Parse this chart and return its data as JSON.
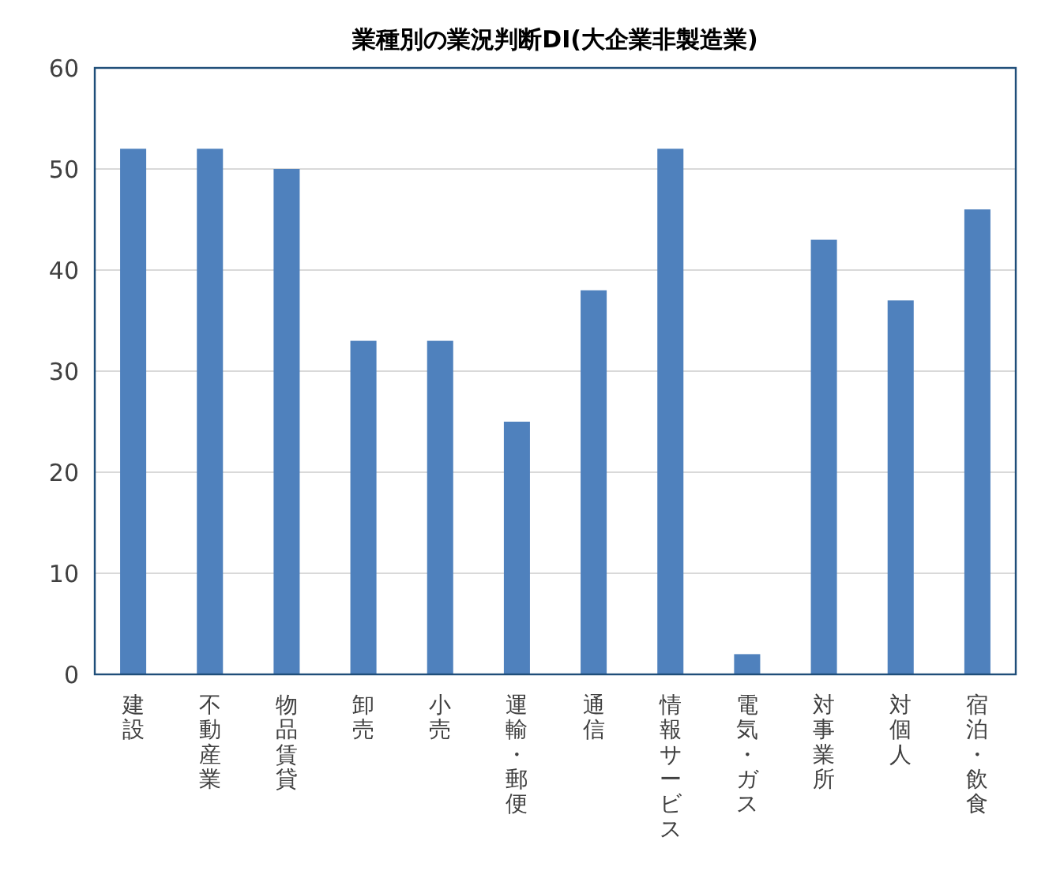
{
  "chart_data": {
    "type": "bar",
    "title": "業種別の業況判断DI(大企業非製造業)",
    "categories": [
      "建設",
      "不動産業",
      "物品賃貸",
      "卸売",
      "小売",
      "運輸・郵便",
      "通信",
      "情報サービス",
      "電気・ガス",
      "対事業所",
      "対個人",
      "宿泊・飲食"
    ],
    "values": [
      52,
      52,
      50,
      33,
      33,
      25,
      38,
      52,
      2,
      43,
      37,
      46
    ],
    "color": "#4f81bd",
    "ylim": [
      0,
      60
    ],
    "yticks": [
      0,
      10,
      20,
      30,
      40,
      50,
      60
    ],
    "grid": "y"
  }
}
